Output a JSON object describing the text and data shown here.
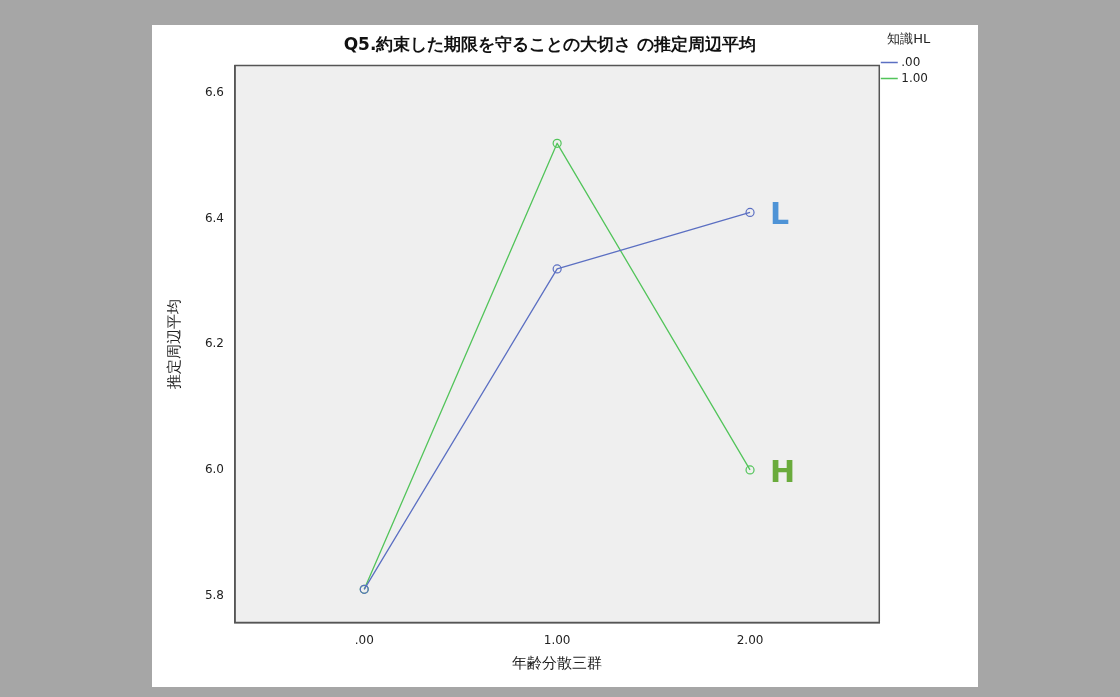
{
  "chart_data": {
    "type": "line",
    "title": "Q5.約束した期限を守ることの大切さ の推定周辺平均",
    "xlabel": "年齢分散三群",
    "ylabel": "推定周辺平均",
    "legend_title": "知識HL",
    "x": [
      0,
      1,
      2
    ],
    "xlim": [
      -0.67,
      2.67
    ],
    "xticks": [
      {
        "value": 0,
        "label": ".00"
      },
      {
        "value": 1,
        "label": "1.00"
      },
      {
        "value": 2,
        "label": "2.00"
      }
    ],
    "ylim": [
      5.757,
      6.644
    ],
    "yticks": [
      {
        "value": 5.8,
        "label": "5.8"
      },
      {
        "value": 6.0,
        "label": "6.0"
      },
      {
        "value": 6.2,
        "label": "6.2"
      },
      {
        "value": 6.4,
        "label": "6.4"
      },
      {
        "value": 6.6,
        "label": "6.6"
      }
    ],
    "series": [
      {
        "name": ".00",
        "color": "#5b6fc2",
        "values": [
          5.81,
          6.32,
          6.41
        ]
      },
      {
        "name": "1.00",
        "color": "#52c45a",
        "values": [
          5.81,
          6.52,
          6.0
        ]
      }
    ],
    "annotations": [
      {
        "text": "L",
        "x": 2,
        "y": 6.41
      },
      {
        "text": "H",
        "x": 2,
        "y": 6.0
      }
    ],
    "grid": false,
    "legend": "top right",
    "marker": "circle",
    "line_style": "solid"
  }
}
